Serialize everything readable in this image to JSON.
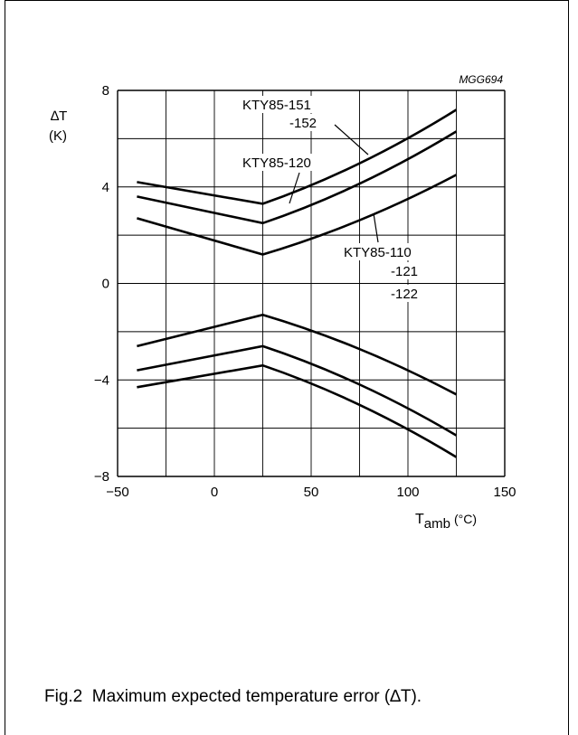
{
  "figure": {
    "code": "MGG694",
    "caption": "Fig.2  Maximum expected temperature error (∆T)."
  },
  "chart_data": {
    "type": "line",
    "ylabel": "∆T",
    "yunit": "(K)",
    "xlabel_main": "T",
    "xlabel_sub": "amb",
    "xlabel_unit": "(°C)",
    "xlim": [
      -50,
      150
    ],
    "ylim": [
      -8,
      8
    ],
    "xticks": [
      -50,
      0,
      50,
      100,
      150
    ],
    "xtick_labels": [
      "−50",
      "0",
      "50",
      "100",
      "150"
    ],
    "yticks": [
      -8,
      -4,
      0,
      4,
      8
    ],
    "ytick_labels": [
      "−8",
      "−4",
      "0",
      "4",
      "8"
    ],
    "grid": true,
    "x": [
      -40,
      25,
      125
    ],
    "series": [
      {
        "name": "KTY85-151 -152 upper",
        "values": [
          4.2,
          3.3,
          7.2
        ]
      },
      {
        "name": "KTY85-120 upper",
        "values": [
          3.6,
          2.5,
          6.3
        ]
      },
      {
        "name": "KTY85-110 -121 -122 upper",
        "values": [
          2.7,
          1.2,
          4.5
        ]
      },
      {
        "name": "KTY85-110 -121 -122 lower",
        "values": [
          -2.6,
          -1.3,
          -4.6
        ]
      },
      {
        "name": "KTY85-120 lower",
        "values": [
          -3.6,
          -2.6,
          -6.3
        ]
      },
      {
        "name": "KTY85-151 -152 lower",
        "values": [
          -4.3,
          -3.4,
          -7.2
        ]
      }
    ],
    "annotations": [
      {
        "text": "KTY85-151"
      },
      {
        "text": "-152"
      },
      {
        "text": "KTY85-120"
      },
      {
        "text": "KTY85-110"
      },
      {
        "text": "-121"
      },
      {
        "text": "-122"
      }
    ]
  }
}
